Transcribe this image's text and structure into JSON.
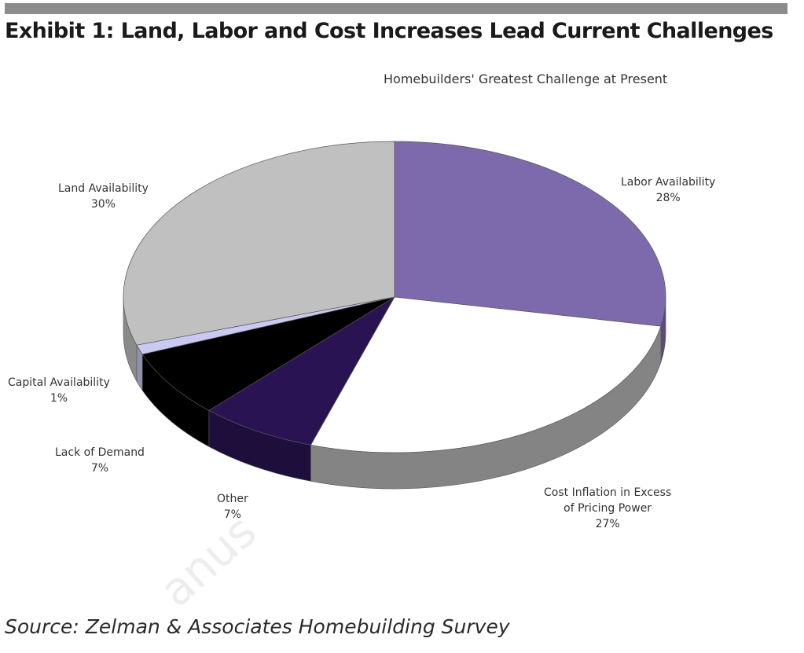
{
  "exhibit_title": "Exhibit 1: Land, Labor and Cost Increases Lead Current Challenges",
  "source": "Source: Zelman & Associates Homebuilding Survey",
  "watermark": "anus",
  "chart_data": {
    "type": "pie",
    "title": "Homebuilders' Greatest Challenge at Present",
    "unit": "%",
    "slices": [
      {
        "label": "Labor Availability",
        "value": 28,
        "value_label": "28%",
        "color": "#7d6aac"
      },
      {
        "label": "Cost Inflation in Excess of Pricing Power",
        "value": 27,
        "value_label": "27%",
        "color": "#ffffff"
      },
      {
        "label": "Other",
        "value": 7,
        "value_label": "7%",
        "color": "#2a1352"
      },
      {
        "label": "Lack of Demand",
        "value": 7,
        "value_label": "7%",
        "color": "#000000"
      },
      {
        "label": "Capital Availability",
        "value": 1,
        "value_label": "1%",
        "color": "#c9c9f2"
      },
      {
        "label": "Land Availability",
        "value": 30,
        "value_label": "30%",
        "color": "#c0c0c0"
      }
    ]
  }
}
